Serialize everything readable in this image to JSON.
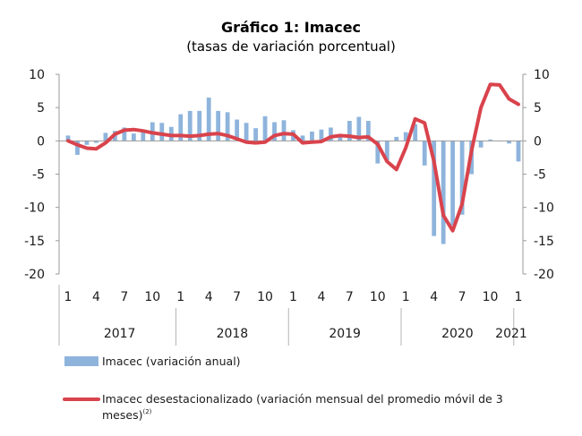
{
  "chart_data": {
    "type": "bar+line",
    "title": "Gráfico 1: Imacec",
    "subtitle": "(tasas de variación porcentual)",
    "ylim": [
      -20,
      10
    ],
    "yticks": [
      -20,
      -15,
      -10,
      -5,
      0,
      5,
      10
    ],
    "ytick_labels": [
      "-20",
      "-15",
      "-10",
      "-5",
      "0",
      "5",
      "10"
    ],
    "grid": false,
    "month_tick_labels": [
      "1",
      "4",
      "7",
      "10",
      "1",
      "4",
      "7",
      "10",
      "1",
      "4",
      "7",
      "10",
      "1",
      "4",
      "7",
      "10",
      "1"
    ],
    "month_tick_positions": [
      0,
      3,
      6,
      9,
      12,
      15,
      18,
      21,
      24,
      27,
      30,
      33,
      36,
      39,
      42,
      45,
      48
    ],
    "year_labels": [
      "2017",
      "2018",
      "2019",
      "2020",
      "2021"
    ],
    "year_label_positions": [
      5.5,
      17.5,
      29.5,
      41.5,
      48
    ],
    "series": [
      {
        "name": "Imacec (variación anual)",
        "kind": "bar",
        "color": "#8eb4dc",
        "x": [
          0,
          1,
          2,
          3,
          4,
          5,
          6,
          7,
          8,
          9,
          10,
          11,
          12,
          13,
          14,
          15,
          16,
          17,
          18,
          19,
          20,
          21,
          22,
          23,
          24,
          25,
          26,
          27,
          28,
          29,
          30,
          31,
          32,
          33,
          34,
          35,
          36,
          37,
          38,
          39,
          40,
          41,
          42,
          43,
          44,
          45,
          46,
          47,
          48
        ],
        "values": [
          0.8,
          -2.1,
          -0.6,
          -0.3,
          1.2,
          1.5,
          2.0,
          1.1,
          1.6,
          2.8,
          2.7,
          2.1,
          4.0,
          4.5,
          4.5,
          6.5,
          4.5,
          4.3,
          3.2,
          2.7,
          1.9,
          3.7,
          2.8,
          3.1,
          1.6,
          0.8,
          1.4,
          1.7,
          2.0,
          1.0,
          3.0,
          3.6,
          3.0,
          -3.4,
          -2.9,
          0.6,
          1.3,
          2.5,
          -3.7,
          -14.3,
          -15.5,
          -12.7,
          -11.1,
          -5.0,
          -1.0,
          0.2,
          0.0,
          -0.4,
          -3.1
        ]
      },
      {
        "name": "Imacec desestacionalizado (variación mensual del promedio móvil de 3 meses)",
        "kind": "line",
        "color": "#d9434c",
        "x": [
          0,
          1,
          2,
          3,
          4,
          5,
          6,
          7,
          8,
          9,
          10,
          11,
          12,
          13,
          14,
          15,
          16,
          17,
          18,
          19,
          20,
          21,
          22,
          23,
          24,
          25,
          26,
          27,
          28,
          29,
          30,
          31,
          32,
          33,
          34,
          35,
          36,
          37,
          38,
          39,
          40,
          41,
          42,
          43,
          44,
          45,
          46,
          47,
          48
        ],
        "values": [
          0.0,
          -0.6,
          -1.1,
          -1.2,
          -0.3,
          1.0,
          1.6,
          1.7,
          1.5,
          1.2,
          1.0,
          0.8,
          0.8,
          0.7,
          0.8,
          1.0,
          1.1,
          0.8,
          0.3,
          -0.2,
          -0.3,
          -0.2,
          0.8,
          1.1,
          1.0,
          -0.3,
          -0.2,
          -0.1,
          0.6,
          0.8,
          0.7,
          0.5,
          0.6,
          -0.5,
          -3.1,
          -4.3,
          -1.0,
          3.3,
          2.7,
          -3.1,
          -11.2,
          -13.5,
          -9.5,
          -1.5,
          5.0,
          8.5,
          8.4,
          6.3,
          5.5
        ]
      }
    ],
    "legend": [
      {
        "label": "Imacec (variación anual)",
        "kind": "bar"
      },
      {
        "label": "Imacec desestacionalizado (variación mensual del promedio móvil de 3",
        "label_line2": "meses)",
        "superscript": "(2)",
        "kind": "line"
      }
    ]
  }
}
